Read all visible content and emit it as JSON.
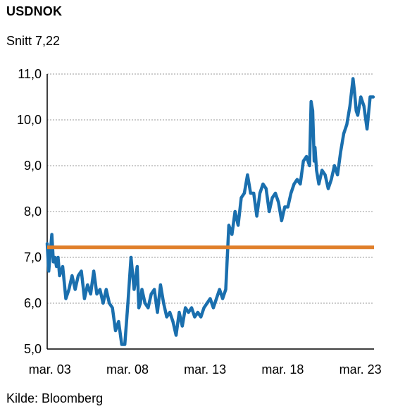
{
  "header": {
    "title": "USDNOK",
    "subtitle": "Snitt 7,22"
  },
  "footer": {
    "source": "Kilde: Bloomberg"
  },
  "colors": {
    "series": "#1a6fae",
    "average": "#e07f2a",
    "grid": "#9a9a9a",
    "axis": "#000000"
  },
  "chart_data": {
    "type": "line",
    "title": "USDNOK",
    "subtitle": "Snitt 7,22",
    "ylim": [
      5.0,
      11.0
    ],
    "xlim": [
      2003.0,
      2024.05
    ],
    "yticks": [
      {
        "value": 5.0,
        "label": "5,0"
      },
      {
        "value": 6.0,
        "label": "6,0"
      },
      {
        "value": 7.0,
        "label": "7,0"
      },
      {
        "value": 8.0,
        "label": "8,0"
      },
      {
        "value": 9.0,
        "label": "9,0"
      },
      {
        "value": 10.0,
        "label": "10,0"
      },
      {
        "value": 11.0,
        "label": "11,0"
      }
    ],
    "xticks": [
      {
        "value": 2003.17,
        "label": "mar. 03"
      },
      {
        "value": 2008.17,
        "label": "mar. 08"
      },
      {
        "value": 2013.17,
        "label": "mar. 13"
      },
      {
        "value": 2018.17,
        "label": "mar. 18"
      },
      {
        "value": 2023.17,
        "label": "mar. 23"
      }
    ],
    "grid": true,
    "average": {
      "value": 7.22,
      "label": "Snitt 7,22"
    },
    "series": [
      {
        "x": [
          2003.0,
          2003.1,
          2003.2,
          2003.3,
          2003.4,
          2003.5,
          2003.6,
          2003.7,
          2003.8,
          2004.0,
          2004.2,
          2004.4,
          2004.6,
          2004.8,
          2005.0,
          2005.2,
          2005.4,
          2005.6,
          2005.8,
          2006.0,
          2006.2,
          2006.4,
          2006.6,
          2006.8,
          2007.0,
          2007.2,
          2007.4,
          2007.6,
          2007.8,
          2008.0,
          2008.2,
          2008.4,
          2008.6,
          2008.8,
          2008.9,
          2009.0,
          2009.1,
          2009.3,
          2009.5,
          2009.7,
          2009.9,
          2010.1,
          2010.3,
          2010.5,
          2010.7,
          2010.9,
          2011.1,
          2011.3,
          2011.5,
          2011.7,
          2011.9,
          2012.1,
          2012.3,
          2012.5,
          2012.7,
          2012.9,
          2013.1,
          2013.3,
          2013.5,
          2013.7,
          2013.9,
          2014.1,
          2014.3,
          2014.5,
          2014.7,
          2014.9,
          2015.1,
          2015.3,
          2015.5,
          2015.7,
          2015.9,
          2016.1,
          2016.3,
          2016.5,
          2016.7,
          2016.9,
          2017.1,
          2017.3,
          2017.5,
          2017.7,
          2017.9,
          2018.1,
          2018.3,
          2018.5,
          2018.7,
          2018.9,
          2019.1,
          2019.3,
          2019.5,
          2019.7,
          2019.9,
          2020.0,
          2020.1,
          2020.2,
          2020.25,
          2020.35,
          2020.5,
          2020.7,
          2020.9,
          2021.1,
          2021.3,
          2021.5,
          2021.7,
          2021.9,
          2022.1,
          2022.3,
          2022.5,
          2022.7,
          2022.8,
          2022.9,
          2023.0,
          2023.2,
          2023.4,
          2023.6,
          2023.8,
          2024.0
        ],
        "values": [
          7.3,
          6.7,
          7.1,
          7.5,
          6.9,
          7.0,
          6.8,
          7.0,
          6.6,
          6.8,
          6.1,
          6.3,
          6.6,
          6.3,
          6.6,
          6.7,
          6.1,
          6.4,
          6.2,
          6.7,
          6.2,
          6.3,
          6.0,
          6.3,
          6.0,
          5.9,
          5.4,
          5.6,
          5.1,
          5.1,
          6.0,
          7.0,
          6.3,
          6.8,
          5.9,
          6.0,
          6.3,
          6.0,
          5.9,
          6.2,
          6.3,
          5.8,
          6.4,
          6.0,
          5.7,
          5.8,
          5.6,
          5.3,
          5.8,
          5.5,
          5.9,
          5.8,
          5.9,
          5.7,
          5.8,
          5.7,
          5.9,
          6.0,
          6.1,
          5.9,
          6.1,
          6.3,
          6.1,
          6.3,
          7.7,
          7.5,
          8.0,
          7.7,
          8.3,
          8.4,
          8.8,
          8.4,
          8.4,
          7.9,
          8.4,
          8.6,
          8.5,
          8.0,
          8.3,
          8.4,
          8.2,
          7.8,
          8.1,
          8.1,
          8.4,
          8.6,
          8.7,
          8.6,
          9.1,
          9.2,
          9.0,
          10.4,
          10.2,
          9.1,
          9.4,
          8.9,
          8.6,
          8.9,
          8.8,
          8.5,
          8.7,
          9.0,
          8.8,
          9.3,
          9.7,
          9.9,
          10.3,
          10.9,
          10.6,
          10.2,
          10.1,
          10.5,
          10.3,
          9.8,
          10.5,
          10.5
        ]
      }
    ]
  }
}
